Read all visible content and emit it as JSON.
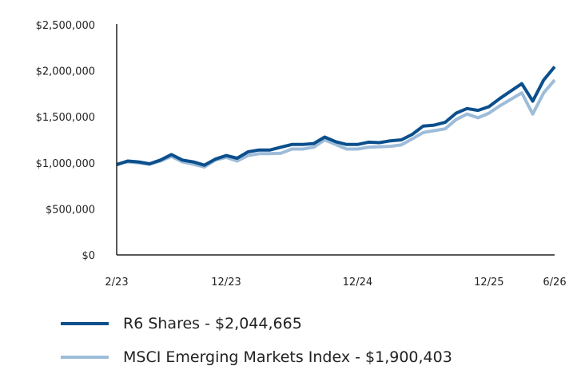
{
  "chart_data": {
    "type": "line",
    "title": "",
    "xlabel": "",
    "ylabel": "",
    "ylim": [
      0,
      2500000
    ],
    "y_ticks": [
      0,
      500000,
      1000000,
      1500000,
      2000000,
      2500000
    ],
    "y_tick_labels": [
      "$0",
      "$500,000",
      "$1,000,000",
      "$1,500,000",
      "$2,000,000",
      "$2,500,000"
    ],
    "x_range": [
      "2023-02",
      "2026-06"
    ],
    "x_ticks": [
      "2023-02",
      "2023-12",
      "2024-12",
      "2025-12",
      "2026-06"
    ],
    "x_tick_labels": [
      "2/23",
      "12/23",
      "12/24",
      "12/25",
      "6/26"
    ],
    "grid": false,
    "legend_position": "bottom-left",
    "x": [
      "2023-02",
      "2023-03",
      "2023-04",
      "2023-05",
      "2023-06",
      "2023-07",
      "2023-08",
      "2023-09",
      "2023-10",
      "2023-11",
      "2023-12",
      "2024-01",
      "2024-02",
      "2024-03",
      "2024-04",
      "2024-05",
      "2024-06",
      "2024-07",
      "2024-08",
      "2024-09",
      "2024-10",
      "2024-11",
      "2024-12",
      "2025-01",
      "2025-02",
      "2025-03",
      "2025-04",
      "2025-05",
      "2025-06",
      "2025-07",
      "2025-08",
      "2025-09",
      "2025-10",
      "2025-11",
      "2025-12",
      "2026-01",
      "2026-02",
      "2026-03",
      "2026-04",
      "2026-05",
      "2026-06"
    ],
    "series": [
      {
        "name": "R6 Shares",
        "legend_label": "R6 Shares - $2,044,665",
        "color": "#0b4f8c",
        "values": [
          980000,
          1020000,
          1010000,
          990000,
          1030000,
          1090000,
          1030000,
          1010000,
          975000,
          1040000,
          1080000,
          1050000,
          1120000,
          1140000,
          1140000,
          1170000,
          1200000,
          1200000,
          1210000,
          1280000,
          1230000,
          1200000,
          1200000,
          1225000,
          1220000,
          1240000,
          1250000,
          1310000,
          1400000,
          1410000,
          1440000,
          1540000,
          1590000,
          1570000,
          1610000,
          1700000,
          1780000,
          1860000,
          1670000,
          1900000,
          2044665
        ]
      },
      {
        "name": "MSCI Emerging Markets Index",
        "legend_label": "MSCI Emerging Markets Index - $1,900,403",
        "color": "#9dbcd9",
        "values": [
          990000,
          1010000,
          1000000,
          985000,
          1020000,
          1070000,
          1010000,
          985000,
          955000,
          1030000,
          1060000,
          1020000,
          1080000,
          1100000,
          1100000,
          1105000,
          1150000,
          1150000,
          1170000,
          1250000,
          1200000,
          1150000,
          1150000,
          1170000,
          1175000,
          1180000,
          1195000,
          1260000,
          1330000,
          1350000,
          1370000,
          1470000,
          1530000,
          1490000,
          1540000,
          1620000,
          1690000,
          1760000,
          1530000,
          1760000,
          1900403
        ]
      }
    ]
  }
}
